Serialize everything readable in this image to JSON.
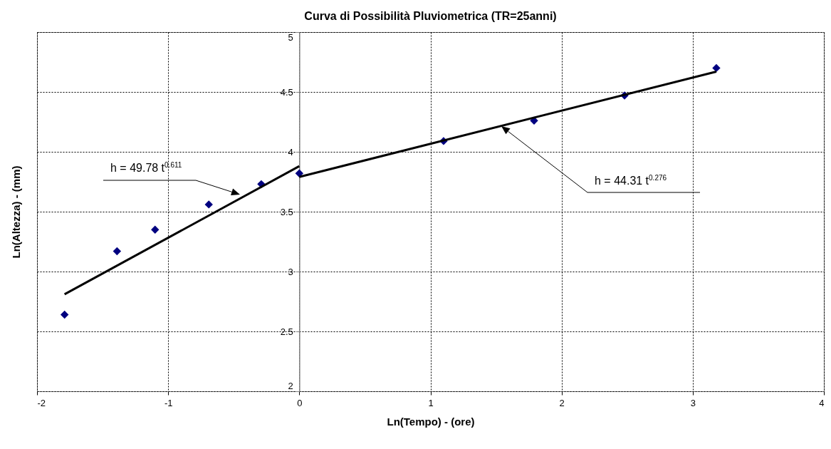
{
  "chart_data": {
    "type": "scatter",
    "title": "Curva di Possibilità Pluviometrica (TR=25anni)",
    "xlabel": "Ln(Tempo) - (ore)",
    "ylabel": "Ln(Altezza) - (mm)",
    "xlim": [
      -2,
      4
    ],
    "xticks": [
      -2,
      -1,
      0,
      1,
      2,
      3,
      4
    ],
    "ylim": [
      2,
      5
    ],
    "yticks": [
      2,
      2.5,
      3,
      3.5,
      4,
      4.5,
      5
    ],
    "grid": true,
    "series": [
      {
        "marker": "diamond",
        "color": "#000080",
        "x": [
          -1.79,
          -1.39,
          -1.1,
          -0.69,
          -0.29,
          0,
          1.1,
          1.79,
          2.48,
          3.18
        ],
        "values": [
          2.64,
          3.17,
          3.35,
          3.56,
          3.73,
          3.82,
          4.09,
          4.26,
          4.47,
          4.7
        ]
      },
      {
        "type": "line",
        "color": "#000000",
        "x": [
          -1.79,
          0
        ],
        "values": [
          2.81,
          3.88
        ]
      },
      {
        "type": "line",
        "color": "#000000",
        "x": [
          0,
          3.18
        ],
        "values": [
          3.79,
          4.67
        ]
      }
    ],
    "annotations": [
      "h = 49.78 t$^{0.611}$",
      "h = 44.31 t$^{0.276}$"
    ]
  }
}
